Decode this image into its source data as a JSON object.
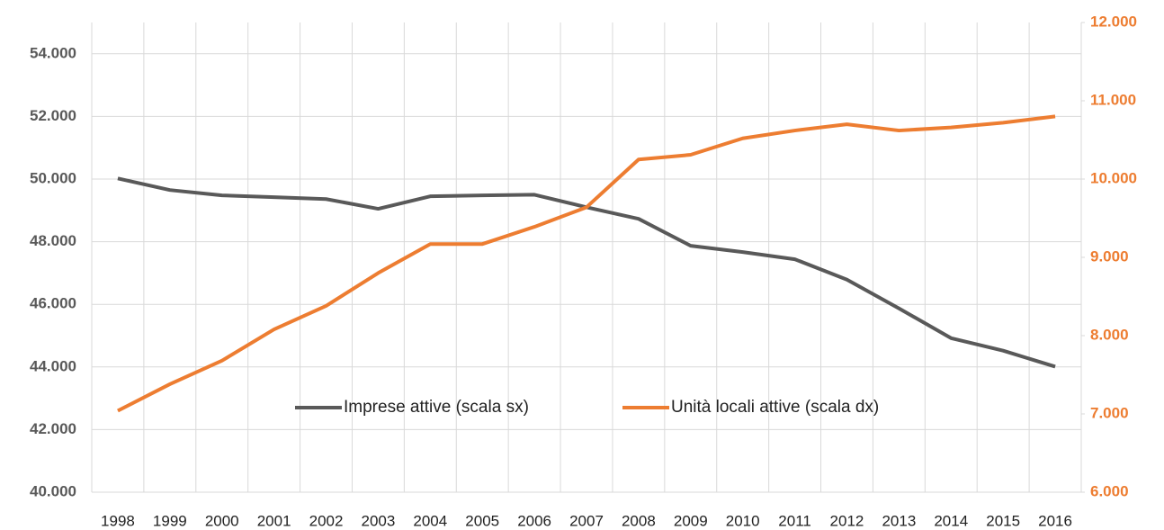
{
  "chart_data": {
    "type": "line",
    "categories": [
      "1998",
      "1999",
      "2000",
      "2001",
      "2002",
      "2003",
      "2004",
      "2005",
      "2006",
      "2007",
      "2008",
      "2009",
      "2010",
      "2011",
      "2012",
      "2013",
      "2014",
      "2015",
      "2016"
    ],
    "series": [
      {
        "name": "Imprese attive (scala sx)",
        "color": "#595959",
        "axis": "y",
        "values": [
          50020,
          49650,
          49480,
          49420,
          49360,
          49050,
          49450,
          49480,
          49500,
          49100,
          48730,
          47870,
          47670,
          47440,
          46790,
          45870,
          44920,
          44520,
          44010
        ]
      },
      {
        "name": "Unità locali attive (scala dx)",
        "color": "#ed7d31",
        "axis": "y2",
        "values": [
          7040,
          7380,
          7680,
          8080,
          8380,
          8800,
          9170,
          9170,
          9390,
          9640,
          10250,
          10310,
          10520,
          10620,
          10700,
          10620,
          10660,
          10720,
          10800
        ]
      }
    ],
    "ylim": [
      40000,
      55000
    ],
    "yticks": [
      {
        "value": 40000,
        "label": "40.000"
      },
      {
        "value": 42000,
        "label": "42.000"
      },
      {
        "value": 44000,
        "label": "44.000"
      },
      {
        "value": 46000,
        "label": "46.000"
      },
      {
        "value": 48000,
        "label": "48.000"
      },
      {
        "value": 50000,
        "label": "50.000"
      },
      {
        "value": 52000,
        "label": "52.000"
      },
      {
        "value": 54000,
        "label": "54.000"
      }
    ],
    "y2lim": [
      6000,
      12000
    ],
    "y2ticks": [
      {
        "value": 6000,
        "label": "6.000"
      },
      {
        "value": 7000,
        "label": "7.000"
      },
      {
        "value": 8000,
        "label": "8.000"
      },
      {
        "value": 9000,
        "label": "9.000"
      },
      {
        "value": 10000,
        "label": "10.000"
      },
      {
        "value": 11000,
        "label": "11.000"
      },
      {
        "value": 12000,
        "label": "12.000"
      }
    ],
    "grid": true,
    "legend": "center"
  }
}
